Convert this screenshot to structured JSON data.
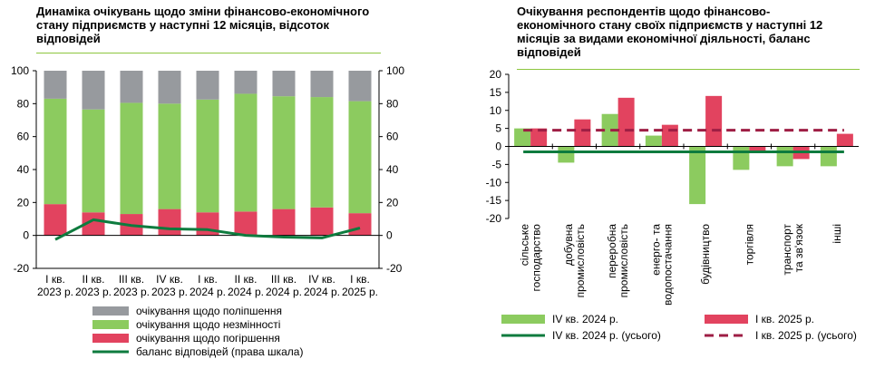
{
  "chart_data": [
    {
      "type": "bar",
      "title": "Динаміка очікувань щодо зміни фінансово-економічного стану підприємств у наступні 12 місяців, відсоток відповідей",
      "categories": [
        {
          "line1": "I кв.",
          "line2": "2023 р."
        },
        {
          "line1": "II кв.",
          "line2": "2023 р."
        },
        {
          "line1": "III кв.",
          "line2": "2023 р."
        },
        {
          "line1": "IV кв.",
          "line2": "2023 р."
        },
        {
          "line1": "I кв.",
          "line2": "2024 р."
        },
        {
          "line1": "II кв.",
          "line2": "2024 р."
        },
        {
          "line1": "III кв.",
          "line2": "2024 р."
        },
        {
          "line1": "IV кв.",
          "line2": "2024 р."
        },
        {
          "line1": "I кв.",
          "line2": "2025 р."
        }
      ],
      "series": [
        {
          "name": "очікування щодо погіршення",
          "color": "#e2435f",
          "values": [
            19,
            14,
            13,
            16,
            14,
            14.5,
            16,
            17,
            13.5
          ]
        },
        {
          "name": "очікування щодо незмінності",
          "color": "#8ccb5f",
          "values": [
            64,
            62.5,
            67.5,
            64,
            68.5,
            71.5,
            68.5,
            67,
            68
          ]
        },
        {
          "name": "очікування щодо поліпшення",
          "color": "#979a9e",
          "values": [
            17,
            23.5,
            19.5,
            20,
            17.5,
            14,
            15.5,
            16,
            18.5
          ]
        },
        {
          "name": "баланс відповідей (права шкала)",
          "type": "line",
          "axis": "right",
          "color": "#0e7b3e",
          "values": [
            -2.5,
            9.5,
            6,
            4,
            3.5,
            0,
            -1,
            -1.5,
            4.5
          ]
        }
      ],
      "ylim": [
        -20,
        100
      ],
      "yticks": [
        "-20",
        "0",
        "20",
        "40",
        "60",
        "80",
        "100"
      ],
      "y2ticks": [
        "-20",
        "0",
        "20",
        "40",
        "60",
        "80",
        "100"
      ]
    },
    {
      "type": "bar",
      "title": "Очікування респондентів щодо фінансово-економічного стану своїх підприємств у наступні 12 місяців за видами економічної діяльності, баланс відповідей",
      "categories": [
        {
          "lines": [
            "сільське",
            "господарство"
          ]
        },
        {
          "lines": [
            "добувна",
            "промисловість"
          ]
        },
        {
          "lines": [
            "переробна",
            "промисловість"
          ]
        },
        {
          "lines": [
            "енерго- та",
            "водопостачання"
          ]
        },
        {
          "lines": [
            "будівництво"
          ]
        },
        {
          "lines": [
            "торгівля"
          ]
        },
        {
          "lines": [
            "транспорт",
            "та зв'язок"
          ]
        },
        {
          "lines": [
            "інші"
          ]
        }
      ],
      "series": [
        {
          "name": "IV кв. 2024 р.",
          "color": "#8ccb5f",
          "values": [
            5,
            -4.5,
            9,
            3,
            -16,
            -6.5,
            -5.5,
            -5.5
          ]
        },
        {
          "name": "I кв. 2025 р.",
          "color": "#e2435f",
          "values": [
            5,
            7.5,
            13.5,
            6,
            14,
            -1.5,
            -3.5,
            3.5
          ]
        },
        {
          "name": "IV кв. 2024 р. (усього)",
          "type": "line",
          "color": "#0e7b3e",
          "value": -1.5
        },
        {
          "name": "I кв. 2025 р. (усього)",
          "type": "line",
          "dashed": true,
          "color": "#9e1e44",
          "value": 4.5
        }
      ],
      "ylim": [
        -20,
        20
      ],
      "yticks": [
        "-20",
        "-15",
        "-10",
        "-5",
        "0",
        "5",
        "10",
        "15",
        "20"
      ]
    }
  ],
  "legend1": [
    "очікування щодо поліпшення",
    "очікування щодо незмінності",
    "очікування щодо погіршення",
    "баланс відповідей (права шкала)"
  ],
  "legend2": [
    "IV кв. 2024 р.",
    "I кв. 2025 р.",
    "IV кв. 2024 р. (усього)",
    "I кв. 2025 р. (усього)"
  ]
}
